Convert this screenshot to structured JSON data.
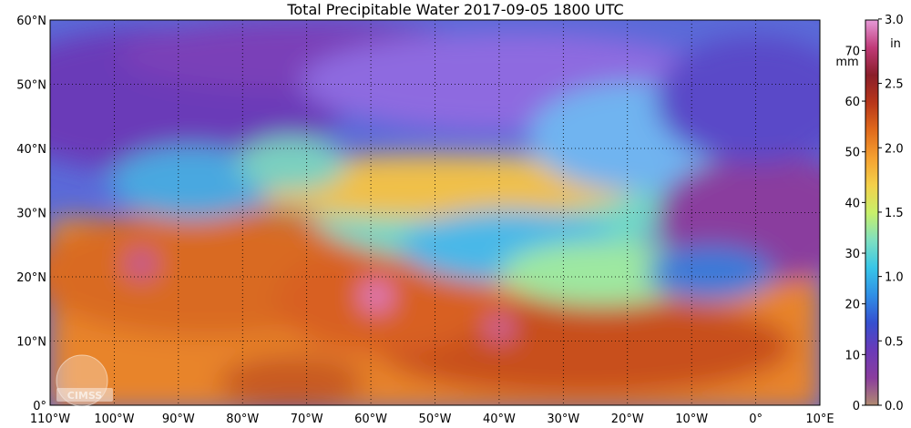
{
  "title": "Total Precipitable Water  2017-09-05 1800 UTC",
  "logo": {
    "text": "CIMSS"
  },
  "map": {
    "lat_labels": [
      "60°N",
      "50°N",
      "40°N",
      "30°N",
      "20°N",
      "10°N",
      "0°"
    ],
    "lon_labels": [
      "110°W",
      "100°W",
      "90°W",
      "80°W",
      "70°W",
      "60°W",
      "50°W",
      "40°W",
      "30°W",
      "20°W",
      "10°W",
      "0°",
      "10°E"
    ],
    "lat_range": [
      0,
      60
    ],
    "lon_range": [
      -110,
      10
    ],
    "grid": true,
    "grid_style": "dotted"
  },
  "colorbar": {
    "left_unit": "mm",
    "right_unit": "in",
    "mm_ticks": [
      "0",
      "10",
      "20",
      "30",
      "40",
      "50",
      "60",
      "70"
    ],
    "in_ticks": [
      "0.0",
      "0.5",
      "1.0",
      "1.5",
      "2.0",
      "2.5",
      "3.0"
    ],
    "mm_range": [
      0,
      76
    ],
    "colors": [
      "#b08a70",
      "#8a3d9e",
      "#6a3ab8",
      "#3550d0",
      "#2f8fe6",
      "#38c6e8",
      "#7fe0c0",
      "#c8f06a",
      "#f4d04a",
      "#f5a030",
      "#e06a1c",
      "#b8361a",
      "#8a1e2a",
      "#c03a78",
      "#e69ad8"
    ]
  }
}
